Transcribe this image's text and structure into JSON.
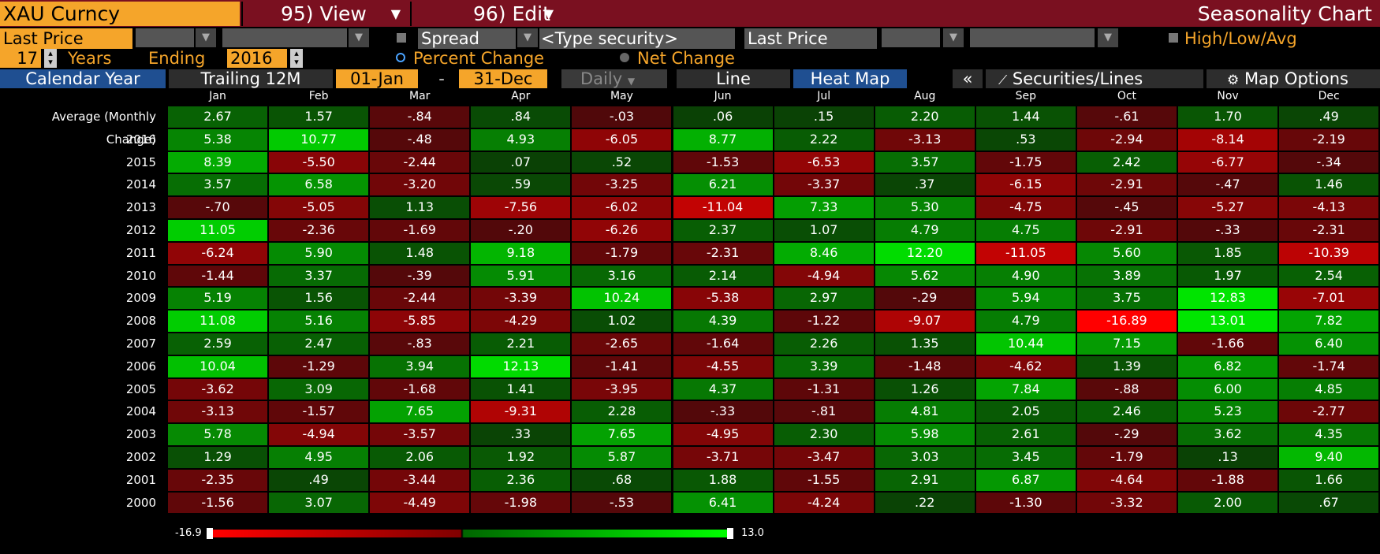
{
  "header": {
    "security": "XAU Curncy",
    "view_label": "95) View",
    "edit_label": "96) Edit",
    "title": "Seasonality Chart"
  },
  "row2": {
    "primary_field": "Last Price",
    "spread_label": "Spread",
    "type_security_placeholder": "<Type security>",
    "secondary_field": "Last Price",
    "high_low_avg_label": "High/Low/Avg"
  },
  "row3": {
    "years_value": "17",
    "years_label": "Years",
    "ending_label": "Ending",
    "ending_year": "2016",
    "percent_change_label": "Percent Change",
    "net_change_label": "Net Change"
  },
  "toolbar": {
    "calendar_year": "Calendar Year",
    "trailing": "Trailing 12M",
    "start_date": "01-Jan",
    "date_sep": "-",
    "end_date": "31-Dec",
    "periodicity": "Daily",
    "line": "Line",
    "heat_map": "Heat Map",
    "collapse": "«",
    "securities_lines": "Securities/Lines",
    "map_options": "Map Options"
  },
  "colors": {
    "header_bg": "#7a1020",
    "accent_orange": "#f5a52a",
    "active_tab": "#1f4f91",
    "max_green": "#00e600",
    "max_red": "#ff0000"
  },
  "chart_data": {
    "type": "heatmap",
    "months": [
      "Jan",
      "Feb",
      "Mar",
      "Apr",
      "May",
      "Jun",
      "Jul",
      "Aug",
      "Sep",
      "Oct",
      "Nov",
      "Dec"
    ],
    "rows": [
      {
        "label": "Average (Monthly Change)",
        "values": [
          "2.67",
          "1.57",
          "-.84",
          ".84",
          "-.03",
          ".06",
          ".15",
          "2.20",
          "1.44",
          "-.61",
          "1.70",
          ".49"
        ]
      },
      {
        "label": "2016",
        "values": [
          "5.38",
          "10.77",
          "-.48",
          "4.93",
          "-6.05",
          "8.77",
          "2.22",
          "-3.13",
          ".53",
          "-2.94",
          "-8.14",
          "-2.19"
        ]
      },
      {
        "label": "2015",
        "values": [
          "8.39",
          "-5.50",
          "-2.44",
          ".07",
          ".52",
          "-1.53",
          "-6.53",
          "3.57",
          "-1.75",
          "2.42",
          "-6.77",
          "-.34"
        ]
      },
      {
        "label": "2014",
        "values": [
          "3.57",
          "6.58",
          "-3.20",
          ".59",
          "-3.25",
          "6.21",
          "-3.37",
          ".37",
          "-6.15",
          "-2.91",
          "-.47",
          "1.46"
        ]
      },
      {
        "label": "2013",
        "values": [
          "-.70",
          "-5.05",
          "1.13",
          "-7.56",
          "-6.02",
          "-11.04",
          "7.33",
          "5.30",
          "-4.75",
          "-.45",
          "-5.27",
          "-4.13"
        ]
      },
      {
        "label": "2012",
        "values": [
          "11.05",
          "-2.36",
          "-1.69",
          "-.20",
          "-6.26",
          "2.37",
          "1.07",
          "4.79",
          "4.75",
          "-2.91",
          "-.33",
          "-2.31"
        ]
      },
      {
        "label": "2011",
        "values": [
          "-6.24",
          "5.90",
          "1.48",
          "9.18",
          "-1.79",
          "-2.31",
          "8.46",
          "12.20",
          "-11.05",
          "5.60",
          "1.85",
          "-10.39"
        ]
      },
      {
        "label": "2010",
        "values": [
          "-1.44",
          "3.37",
          "-.39",
          "5.91",
          "3.16",
          "2.14",
          "-4.94",
          "5.62",
          "4.90",
          "3.89",
          "1.97",
          "2.54"
        ]
      },
      {
        "label": "2009",
        "values": [
          "5.19",
          "1.56",
          "-2.44",
          "-3.39",
          "10.24",
          "-5.38",
          "2.97",
          "-.29",
          "5.94",
          "3.75",
          "12.83",
          "-7.01"
        ]
      },
      {
        "label": "2008",
        "values": [
          "11.08",
          "5.16",
          "-5.85",
          "-4.29",
          "1.02",
          "4.39",
          "-1.22",
          "-9.07",
          "4.79",
          "-16.89",
          "13.01",
          "7.82"
        ]
      },
      {
        "label": "2007",
        "values": [
          "2.59",
          "2.47",
          "-.83",
          "2.21",
          "-2.65",
          "-1.64",
          "2.26",
          "1.35",
          "10.44",
          "7.15",
          "-1.66",
          "6.40"
        ]
      },
      {
        "label": "2006",
        "values": [
          "10.04",
          "-1.29",
          "3.94",
          "12.13",
          "-1.41",
          "-4.55",
          "3.39",
          "-1.48",
          "-4.62",
          "1.39",
          "6.82",
          "-1.74"
        ]
      },
      {
        "label": "2005",
        "values": [
          "-3.62",
          "3.09",
          "-1.68",
          "1.41",
          "-3.95",
          "4.37",
          "-1.31",
          "1.26",
          "7.84",
          "-.88",
          "6.00",
          "4.85"
        ]
      },
      {
        "label": "2004",
        "values": [
          "-3.13",
          "-1.57",
          "7.65",
          "-9.31",
          "2.28",
          "-.33",
          "-.81",
          "4.81",
          "2.05",
          "2.46",
          "5.23",
          "-2.77"
        ]
      },
      {
        "label": "2003",
        "values": [
          "5.78",
          "-4.94",
          "-3.57",
          ".33",
          "7.65",
          "-4.95",
          "2.30",
          "5.98",
          "2.61",
          "-.29",
          "3.62",
          "4.35"
        ]
      },
      {
        "label": "2002",
        "values": [
          "1.29",
          "4.95",
          "2.06",
          "1.92",
          "5.87",
          "-3.71",
          "-3.47",
          "3.03",
          "3.45",
          "-1.79",
          ".13",
          "9.40"
        ]
      },
      {
        "label": "2001",
        "values": [
          "-2.35",
          ".49",
          "-3.44",
          "2.36",
          ".68",
          "1.88",
          "-1.55",
          "2.91",
          "6.87",
          "-4.64",
          "-1.88",
          "1.66"
        ]
      },
      {
        "label": "2000",
        "values": [
          "-1.56",
          "3.07",
          "-4.49",
          "-1.98",
          "-.53",
          "6.41",
          "-4.24",
          ".22",
          "-1.30",
          "-3.32",
          "2.00",
          ".67"
        ]
      }
    ],
    "legend_min": "-16.9",
    "legend_max": "13.0"
  }
}
